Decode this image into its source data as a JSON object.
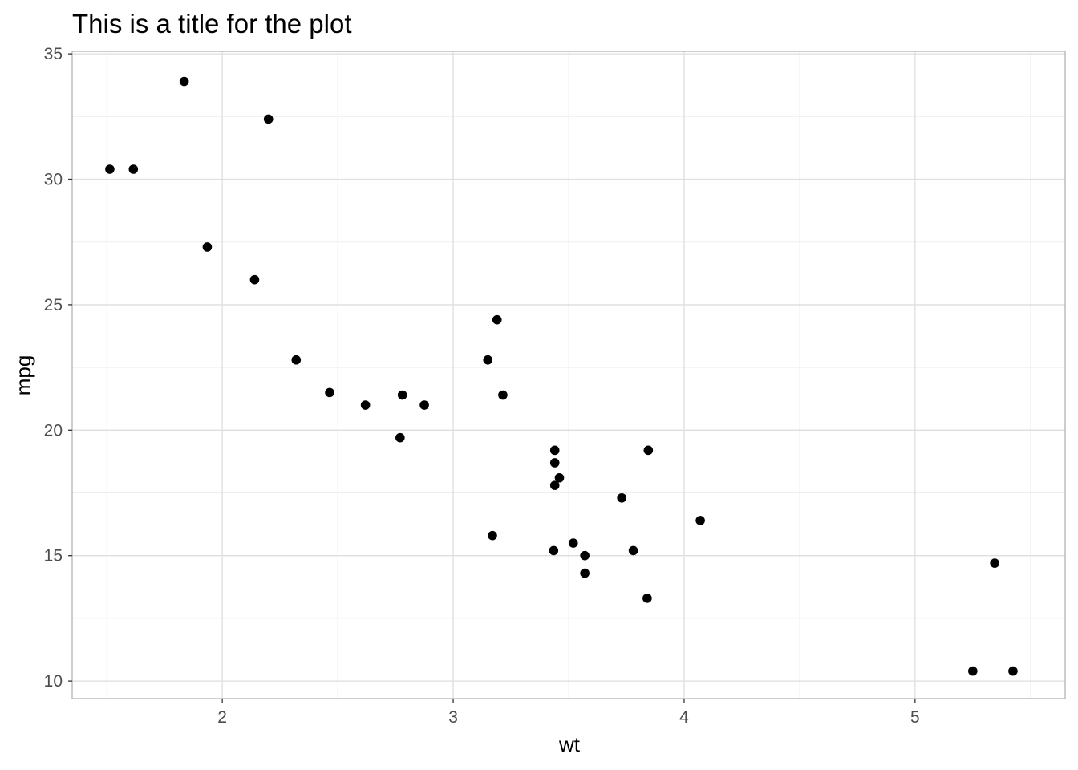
{
  "chart_data": {
    "type": "scatter",
    "title": "This is a title for the plot",
    "xlabel": "wt",
    "ylabel": "mpg",
    "xlim": [
      1.35,
      5.65
    ],
    "ylim": [
      9.3,
      35.1
    ],
    "xticks": [
      2,
      3,
      4,
      5
    ],
    "xtick_labels": [
      "2",
      "3",
      "4",
      "5"
    ],
    "yticks": [
      10,
      15,
      20,
      25,
      30,
      35
    ],
    "ytick_labels": [
      "10",
      "15",
      "20",
      "25",
      "30",
      "35"
    ],
    "x_minor_ticks": [
      1.5,
      2.5,
      3.5,
      4.5,
      5.5
    ],
    "y_minor_ticks": [
      12.5,
      17.5,
      22.5,
      27.5,
      32.5
    ],
    "grid": true,
    "legend": "none",
    "colors": {
      "point": "#000000",
      "grid_major": "#dedede",
      "grid_minor": "#efefef",
      "panel_border": "#b3b3b3",
      "tick_label": "#4d4d4d"
    },
    "points": [
      {
        "x": 2.62,
        "y": 21.0
      },
      {
        "x": 2.875,
        "y": 21.0
      },
      {
        "x": 2.32,
        "y": 22.8
      },
      {
        "x": 3.215,
        "y": 21.4
      },
      {
        "x": 3.44,
        "y": 18.7
      },
      {
        "x": 3.46,
        "y": 18.1
      },
      {
        "x": 3.57,
        "y": 14.3
      },
      {
        "x": 3.19,
        "y": 24.4
      },
      {
        "x": 3.15,
        "y": 22.8
      },
      {
        "x": 3.44,
        "y": 19.2
      },
      {
        "x": 3.44,
        "y": 17.8
      },
      {
        "x": 4.07,
        "y": 16.4
      },
      {
        "x": 3.73,
        "y": 17.3
      },
      {
        "x": 3.78,
        "y": 15.2
      },
      {
        "x": 5.25,
        "y": 10.4
      },
      {
        "x": 5.424,
        "y": 10.4
      },
      {
        "x": 5.345,
        "y": 14.7
      },
      {
        "x": 2.2,
        "y": 32.4
      },
      {
        "x": 1.615,
        "y": 30.4
      },
      {
        "x": 1.835,
        "y": 33.9
      },
      {
        "x": 2.465,
        "y": 21.5
      },
      {
        "x": 3.52,
        "y": 15.5
      },
      {
        "x": 3.435,
        "y": 15.2
      },
      {
        "x": 3.84,
        "y": 13.3
      },
      {
        "x": 3.845,
        "y": 19.2
      },
      {
        "x": 1.935,
        "y": 27.3
      },
      {
        "x": 2.14,
        "y": 26.0
      },
      {
        "x": 1.513,
        "y": 30.4
      },
      {
        "x": 3.17,
        "y": 15.8
      },
      {
        "x": 2.77,
        "y": 19.7
      },
      {
        "x": 3.57,
        "y": 15.0
      },
      {
        "x": 2.78,
        "y": 21.4
      }
    ]
  }
}
